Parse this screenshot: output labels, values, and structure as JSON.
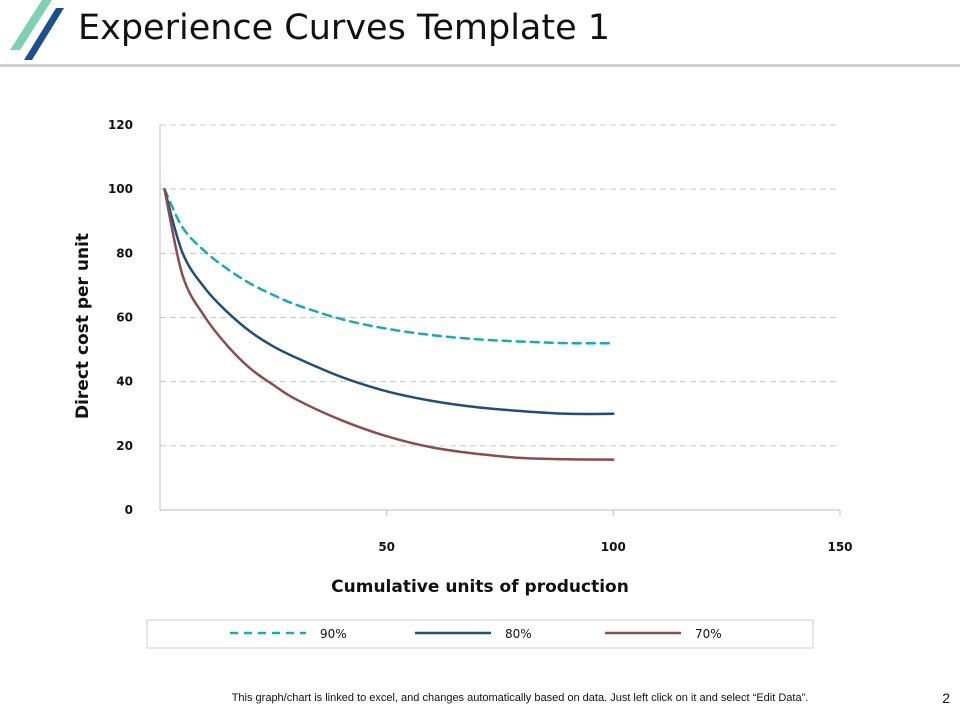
{
  "page": {
    "title": "Experience Curves Template 1",
    "footer_note": "This graph/chart is linked to excel, and changes automatically based on data. Just left click on it and select “Edit Data”.",
    "page_number": "2"
  },
  "colors": {
    "logo_light": "#7fcfb3",
    "logo_dark": "#1f4e8c",
    "grid": "#c8c8c8",
    "axis": "#bfbfbf"
  },
  "chart_data": {
    "type": "line",
    "title": "",
    "xlabel": "Cumulative units of production",
    "ylabel": "Direct cost per unit",
    "xlim": [
      0,
      150
    ],
    "ylim": [
      0,
      120
    ],
    "x_ticks": [
      50,
      100,
      150
    ],
    "y_ticks": [
      0,
      20,
      40,
      60,
      80,
      100,
      120
    ],
    "grid": true,
    "legend_position": "bottom",
    "x": [
      1,
      5,
      10,
      15,
      20,
      25,
      30,
      40,
      50,
      60,
      70,
      80,
      90,
      100
    ],
    "series": [
      {
        "name": "90%",
        "color": "#1aa9b8",
        "dash": true,
        "values": [
          100,
          88,
          80.5,
          75,
          70.5,
          67,
          64,
          59.5,
          56.5,
          54.5,
          53.2,
          52.5,
          52,
          52
        ]
      },
      {
        "name": "80%",
        "color": "#1f4e79",
        "dash": false,
        "values": [
          100,
          80,
          69,
          61.5,
          55.5,
          51,
          47.5,
          41.5,
          37,
          34,
          32,
          30.8,
          30,
          30
        ]
      },
      {
        "name": "70%",
        "color": "#8b4d4b",
        "dash": false,
        "values": [
          100,
          73,
          60,
          51,
          44,
          39,
          34.5,
          28,
          23,
          19.5,
          17.5,
          16.2,
          15.8,
          15.7
        ]
      }
    ]
  }
}
